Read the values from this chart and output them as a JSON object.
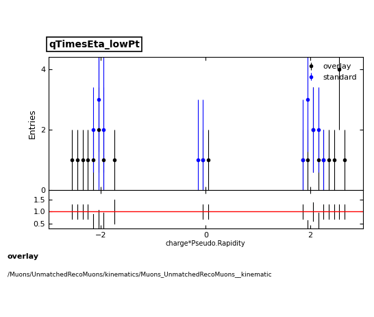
{
  "title": "qTimesEta_lowPt",
  "xlabel": "charge*Pseudo.Rapidity",
  "ylabel": "Entries",
  "main_ylim": [
    0,
    4.4
  ],
  "main_yticks": [
    0,
    2,
    4
  ],
  "ratio_ylim": [
    0.3,
    1.9
  ],
  "ratio_yticks": [
    0.5,
    1.0,
    1.5
  ],
  "xlim": [
    -3.0,
    3.0
  ],
  "xticks": [
    -2,
    0,
    2
  ],
  "overlay_label": "overlay",
  "standard_label": "standard",
  "overlay_x": [
    -2.55,
    -2.45,
    -2.35,
    -2.25,
    -2.15,
    -2.05,
    -1.95,
    -1.75,
    -0.05,
    0.05,
    1.85,
    1.95,
    2.05,
    2.15,
    2.25,
    2.35,
    2.45,
    2.55,
    2.65
  ],
  "overlay_y": [
    1.0,
    1.0,
    1.0,
    1.0,
    1.0,
    2.0,
    1.0,
    1.0,
    1.0,
    1.0,
    1.0,
    1.0,
    2.0,
    1.0,
    1.0,
    1.0,
    1.0,
    4.0,
    1.0
  ],
  "overlay_yerr_lo": [
    1.0,
    1.0,
    1.0,
    1.0,
    1.0,
    1.414,
    1.0,
    1.0,
    1.0,
    1.0,
    1.0,
    1.0,
    1.414,
    1.0,
    1.0,
    1.0,
    1.0,
    2.0,
    1.0
  ],
  "overlay_yerr_hi": [
    1.0,
    1.0,
    1.0,
    1.0,
    1.0,
    1.414,
    1.0,
    1.0,
    1.0,
    1.0,
    1.0,
    1.0,
    1.414,
    1.0,
    1.0,
    1.0,
    1.0,
    2.0,
    1.0
  ],
  "standard_x": [
    -2.15,
    -2.05,
    -1.95,
    -0.15,
    -0.05,
    1.85,
    1.95,
    2.05,
    2.15,
    2.25
  ],
  "standard_y": [
    2.0,
    3.0,
    2.0,
    1.0,
    1.0,
    1.0,
    3.0,
    2.0,
    2.0,
    1.0
  ],
  "standard_yerr_lo": [
    1.414,
    1.732,
    1.414,
    1.0,
    1.0,
    1.0,
    1.732,
    1.414,
    1.414,
    1.0
  ],
  "standard_yerr_hi": [
    1.414,
    2.0,
    1.414,
    2.0,
    2.0,
    2.0,
    2.0,
    1.414,
    1.414,
    1.0
  ],
  "standard_vlines": [
    -2.05,
    -1.95
  ],
  "ratio_x": [
    -2.55,
    -2.45,
    -2.35,
    -2.25,
    -2.15,
    -2.05,
    -1.95,
    -1.75,
    -0.05,
    0.05,
    1.85,
    1.95,
    2.05,
    2.15,
    2.25,
    2.35,
    2.45,
    2.55,
    2.65,
    0.0
  ],
  "ratio_y": [
    1.0,
    1.0,
    1.0,
    1.0,
    0.5,
    0.667,
    0.5,
    1.0,
    1.0,
    1.0,
    1.0,
    0.333,
    1.0,
    0.5,
    1.0,
    1.0,
    1.0,
    1.0,
    1.0,
    1.0
  ],
  "ratio_yerr": [
    0.3,
    0.3,
    0.3,
    0.3,
    0.4,
    0.4,
    0.45,
    0.5,
    0.3,
    0.3,
    0.3,
    0.3,
    0.4,
    0.45,
    0.3,
    0.3,
    0.3,
    0.3,
    0.3,
    0.0
  ],
  "background_color": "#ffffff",
  "main_color": "black",
  "standard_color": "blue",
  "ratio_line_color": "red",
  "footer_text": "overlay\n/Muons/UnmatchedRecoMuons/kinematics/Muons_UnmatchedRecoMuons__kinematic"
}
